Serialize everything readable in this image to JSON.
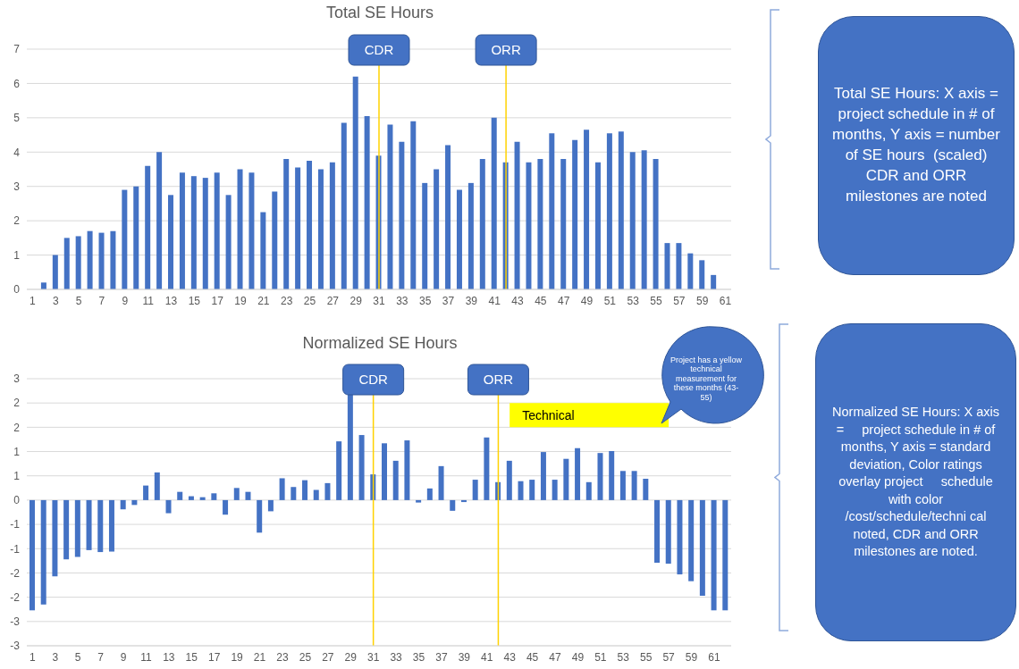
{
  "chart_data": [
    {
      "type": "bar",
      "title": "Total SE Hours",
      "x": [
        2,
        3,
        4,
        5,
        6,
        7,
        8,
        9,
        10,
        11,
        12,
        13,
        14,
        15,
        16,
        17,
        18,
        19,
        20,
        21,
        22,
        23,
        24,
        25,
        26,
        27,
        28,
        29,
        30,
        31,
        32,
        33,
        34,
        35,
        36,
        37,
        38,
        39,
        40,
        41,
        42,
        43,
        44,
        45,
        46,
        47,
        48,
        49,
        50,
        51,
        52,
        53,
        54,
        55,
        56,
        57,
        58,
        59,
        60
      ],
      "values": [
        0.2,
        1.0,
        1.5,
        1.55,
        1.7,
        1.65,
        1.7,
        2.9,
        3.0,
        3.6,
        4.0,
        2.75,
        3.4,
        3.3,
        3.25,
        3.4,
        2.75,
        3.5,
        3.4,
        2.25,
        2.85,
        3.8,
        3.55,
        3.75,
        3.5,
        3.7,
        4.85,
        6.2,
        5.05,
        3.9,
        4.8,
        4.3,
        4.9,
        3.1,
        3.5,
        4.2,
        2.9,
        3.1,
        3.8,
        5.0,
        3.7,
        4.3,
        3.7,
        3.8,
        4.55,
        3.8,
        4.35,
        4.65,
        3.7,
        4.55,
        4.6,
        4.0,
        4.05,
        3.8,
        1.35,
        1.35,
        1.05,
        0.85,
        0.42
      ],
      "color": "#4472c4",
      "xlim": [
        0.5,
        61.5
      ],
      "xticks": [
        1,
        3,
        5,
        7,
        9,
        11,
        13,
        15,
        17,
        19,
        21,
        23,
        25,
        27,
        29,
        31,
        33,
        35,
        37,
        39,
        41,
        43,
        45,
        47,
        49,
        51,
        53,
        55,
        57,
        59,
        61
      ],
      "ylim": [
        0,
        7
      ],
      "yticks": [
        0,
        1,
        2,
        3,
        4,
        5,
        6,
        7
      ],
      "grid": "y",
      "ref_lines": [
        {
          "axis": "x",
          "value": 31,
          "label": "CDR",
          "color": "#ffd200"
        },
        {
          "axis": "x",
          "value": 42,
          "label": "ORR",
          "color": "#ffd200"
        }
      ],
      "annotations": [
        "Total SE Hours: X axis =     project schedule in # of months, Y axis = number of SE hours  (scaled) CDR and ORR milestones are noted"
      ]
    },
    {
      "type": "bar",
      "title": "Normalized SE Hours",
      "x": [
        1,
        2,
        3,
        4,
        5,
        6,
        7,
        8,
        9,
        10,
        11,
        12,
        13,
        14,
        15,
        16,
        17,
        18,
        19,
        20,
        21,
        22,
        23,
        24,
        25,
        26,
        27,
        28,
        29,
        30,
        31,
        32,
        33,
        34,
        35,
        36,
        37,
        38,
        39,
        40,
        41,
        42,
        43,
        44,
        45,
        46,
        47,
        48,
        49,
        50,
        51,
        52,
        53,
        54,
        55,
        56,
        57,
        58,
        59,
        60,
        61,
        62
      ],
      "values": [
        -2.27,
        -2.15,
        -1.57,
        -1.22,
        -1.17,
        -1.03,
        -1.07,
        -1.06,
        -0.19,
        -0.1,
        0.3,
        0.57,
        -0.27,
        0.17,
        0.08,
        0.06,
        0.14,
        -0.3,
        0.25,
        0.17,
        -0.67,
        -0.23,
        0.45,
        0.27,
        0.41,
        0.21,
        0.35,
        1.21,
        2.17,
        1.34,
        0.53,
        1.17,
        0.81,
        1.23,
        -0.05,
        0.24,
        0.7,
        -0.22,
        -0.04,
        0.42,
        1.29,
        0.37,
        0.81,
        0.39,
        0.42,
        0.99,
        0.42,
        0.85,
        1.07,
        0.37,
        0.97,
        1.01,
        0.6,
        0.6,
        0.44,
        -1.29,
        -1.31,
        -1.53,
        -1.67,
        -1.97,
        -2.27,
        -2.27
      ],
      "color": "#4472c4",
      "xlim": [
        0.5,
        62.5
      ],
      "xticks": [
        1,
        3,
        5,
        7,
        9,
        11,
        13,
        15,
        17,
        19,
        21,
        23,
        25,
        27,
        29,
        31,
        33,
        35,
        37,
        39,
        41,
        43,
        45,
        47,
        49,
        51,
        53,
        55,
        57,
        59,
        61
      ],
      "ylim": [
        -3,
        2.5
      ],
      "yticks": [
        {
          "value": 2.5,
          "label": "3"
        },
        {
          "value": 2,
          "label": "2"
        },
        {
          "value": 1.5,
          "label": "2"
        },
        {
          "value": 1,
          "label": "1"
        },
        {
          "value": 0.5,
          "label": "1"
        },
        0,
        {
          "value": -0.5,
          "label": "-1"
        },
        {
          "value": -1,
          "label": "-1"
        },
        {
          "value": -1.5,
          "label": "-2"
        },
        {
          "value": -2,
          "label": "-2"
        },
        {
          "value": -2.5,
          "label": "-3"
        },
        {
          "value": -3,
          "label": "-3"
        }
      ],
      "grid": "y",
      "ref_lines": [
        {
          "axis": "x",
          "value": 31,
          "label": "CDR",
          "color": "#ffd200"
        },
        {
          "axis": "x",
          "value": 42,
          "label": "ORR",
          "color": "#ffd200"
        }
      ],
      "bands": [
        {
          "axis": "x",
          "from": 43,
          "to": 57,
          "label": "Technical",
          "color": "#ffff00"
        }
      ],
      "annotations": [
        "Normalized SE Hours: X axis =     project schedule in # of months, Y axis = standard deviation, Color ratings overlay project     schedule with color /cost/schedule/techni cal noted, CDR and ORR milestones are noted.",
        "Project has a yellow technical measurement for these months (43-55)"
      ]
    }
  ]
}
